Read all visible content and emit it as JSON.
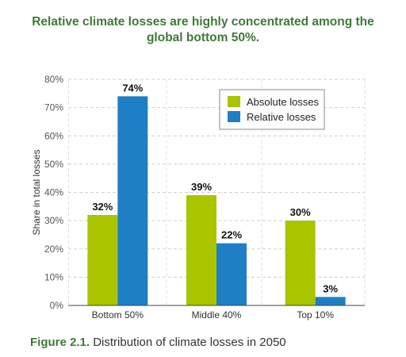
{
  "title": "Relative climate losses are highly concentrated among the global bottom 50%.",
  "caption": {
    "figure": "Figure 2.1.",
    "text": " Distribution of climate losses in 2050"
  },
  "chart_data": {
    "type": "bar",
    "categories": [
      "Bottom 50%",
      "Middle 40%",
      "Top 10%"
    ],
    "series": [
      {
        "name": "Absolute losses",
        "values": [
          32,
          39,
          30
        ],
        "labels": [
          "32%",
          "39%",
          "30%"
        ],
        "color": "#a8c500"
      },
      {
        "name": "Relative losses",
        "values": [
          74,
          22,
          3
        ],
        "labels": [
          "74%",
          "22%",
          "3%"
        ],
        "color": "#1f7fc4"
      }
    ],
    "ylabel": "Share in total losses",
    "ylim": [
      0,
      80
    ],
    "yticks": [
      0,
      10,
      20,
      30,
      40,
      50,
      60,
      70,
      80
    ],
    "ytick_labels": [
      "0%",
      "10%",
      "20%",
      "30%",
      "40%",
      "50%",
      "60%",
      "70%",
      "80%"
    ],
    "grid": true,
    "legend_position": "top-right"
  }
}
